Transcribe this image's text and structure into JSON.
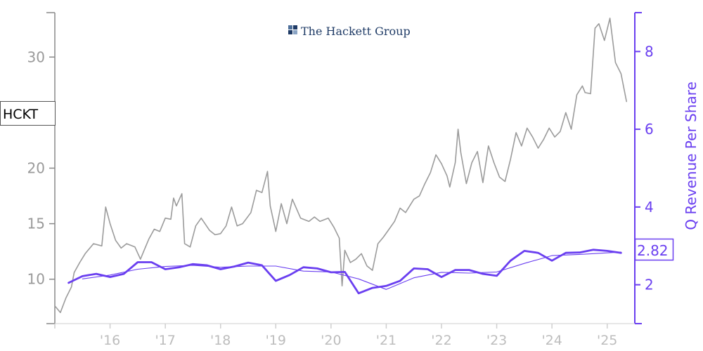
{
  "chart_data": {
    "type": "line",
    "company": "The Hackett Group",
    "ticker": "HCKT",
    "ylabel_right": "Q Revenue Per Share",
    "last_value_label": "2.82",
    "xlim": [
      2015.0,
      2025.5
    ],
    "ylim_left": [
      6.0,
      34.0
    ],
    "ylim_right": [
      1.0,
      9.0
    ],
    "x_ticks": [
      {
        "x": 2016,
        "label": "'16"
      },
      {
        "x": 2017,
        "label": "'17"
      },
      {
        "x": 2018,
        "label": "'18"
      },
      {
        "x": 2019,
        "label": "'19"
      },
      {
        "x": 2020,
        "label": "'20"
      },
      {
        "x": 2021,
        "label": "'21"
      },
      {
        "x": 2022,
        "label": "'22"
      },
      {
        "x": 2023,
        "label": "'23"
      },
      {
        "x": 2024,
        "label": "'24"
      },
      {
        "x": 2025,
        "label": "'25"
      }
    ],
    "y_ticks_left": [
      10,
      15,
      20,
      30
    ],
    "y_ticks_right": [
      2,
      4,
      6,
      8
    ],
    "colors": {
      "price": "#9b9b9b",
      "revenue": "#6a3ff0",
      "axis_left": "#888888",
      "axis_right": "#6a3ff0"
    },
    "series": [
      {
        "axis": "left",
        "points": [
          [
            2015.0,
            7.6
          ],
          [
            2015.1,
            7.0
          ],
          [
            2015.2,
            8.3
          ],
          [
            2015.3,
            9.3
          ],
          [
            2015.35,
            10.6
          ],
          [
            2015.45,
            11.5
          ],
          [
            2015.55,
            12.3
          ],
          [
            2015.7,
            13.2
          ],
          [
            2015.85,
            13.0
          ],
          [
            2015.92,
            16.5
          ],
          [
            2016.0,
            15.0
          ],
          [
            2016.1,
            13.5
          ],
          [
            2016.2,
            12.8
          ],
          [
            2016.3,
            13.2
          ],
          [
            2016.45,
            12.9
          ],
          [
            2016.55,
            11.8
          ],
          [
            2016.6,
            12.4
          ],
          [
            2016.7,
            13.6
          ],
          [
            2016.8,
            14.5
          ],
          [
            2016.9,
            14.3
          ],
          [
            2017.0,
            15.5
          ],
          [
            2017.1,
            15.4
          ],
          [
            2017.15,
            17.3
          ],
          [
            2017.2,
            16.6
          ],
          [
            2017.3,
            17.7
          ],
          [
            2017.35,
            13.2
          ],
          [
            2017.45,
            12.9
          ],
          [
            2017.55,
            14.8
          ],
          [
            2017.65,
            15.5
          ],
          [
            2017.8,
            14.4
          ],
          [
            2017.9,
            14.0
          ],
          [
            2018.0,
            14.1
          ],
          [
            2018.1,
            14.8
          ],
          [
            2018.2,
            16.5
          ],
          [
            2018.3,
            14.8
          ],
          [
            2018.4,
            15.0
          ],
          [
            2018.55,
            16.0
          ],
          [
            2018.65,
            18.0
          ],
          [
            2018.75,
            17.8
          ],
          [
            2018.85,
            19.7
          ],
          [
            2018.9,
            16.6
          ],
          [
            2019.0,
            14.3
          ],
          [
            2019.1,
            16.8
          ],
          [
            2019.2,
            15.0
          ],
          [
            2019.3,
            17.2
          ],
          [
            2019.45,
            15.5
          ],
          [
            2019.6,
            15.2
          ],
          [
            2019.7,
            15.6
          ],
          [
            2019.8,
            15.2
          ],
          [
            2019.95,
            15.5
          ],
          [
            2020.05,
            14.7
          ],
          [
            2020.15,
            13.7
          ],
          [
            2020.2,
            9.4
          ],
          [
            2020.25,
            12.6
          ],
          [
            2020.35,
            11.5
          ],
          [
            2020.45,
            11.8
          ],
          [
            2020.55,
            12.3
          ],
          [
            2020.65,
            11.2
          ],
          [
            2020.75,
            10.8
          ],
          [
            2020.85,
            13.2
          ],
          [
            2020.95,
            13.8
          ],
          [
            2021.05,
            14.5
          ],
          [
            2021.15,
            15.2
          ],
          [
            2021.25,
            16.4
          ],
          [
            2021.35,
            16.0
          ],
          [
            2021.5,
            17.2
          ],
          [
            2021.6,
            17.5
          ],
          [
            2021.7,
            18.6
          ],
          [
            2021.8,
            19.6
          ],
          [
            2021.9,
            21.2
          ],
          [
            2022.0,
            20.4
          ],
          [
            2022.1,
            19.3
          ],
          [
            2022.15,
            18.3
          ],
          [
            2022.25,
            20.5
          ],
          [
            2022.3,
            23.5
          ],
          [
            2022.35,
            21.4
          ],
          [
            2022.45,
            18.6
          ],
          [
            2022.55,
            20.5
          ],
          [
            2022.65,
            21.5
          ],
          [
            2022.75,
            18.7
          ],
          [
            2022.85,
            22.0
          ],
          [
            2022.95,
            20.5
          ],
          [
            2023.05,
            19.2
          ],
          [
            2023.15,
            18.8
          ],
          [
            2023.25,
            20.8
          ],
          [
            2023.35,
            23.2
          ],
          [
            2023.45,
            22.0
          ],
          [
            2023.55,
            23.6
          ],
          [
            2023.65,
            22.8
          ],
          [
            2023.75,
            21.8
          ],
          [
            2023.85,
            22.6
          ],
          [
            2023.95,
            23.6
          ],
          [
            2024.05,
            22.8
          ],
          [
            2024.15,
            23.3
          ],
          [
            2024.25,
            25.0
          ],
          [
            2024.35,
            23.5
          ],
          [
            2024.45,
            26.6
          ],
          [
            2024.55,
            27.4
          ],
          [
            2024.6,
            26.8
          ],
          [
            2024.7,
            26.7
          ],
          [
            2024.78,
            32.6
          ],
          [
            2024.85,
            33.0
          ],
          [
            2024.95,
            31.5
          ],
          [
            2025.05,
            33.5
          ],
          [
            2025.15,
            29.5
          ],
          [
            2025.25,
            28.5
          ],
          [
            2025.35,
            26.0
          ]
        ]
      },
      {
        "axis": "right",
        "points": [
          [
            2015.25,
            2.05
          ],
          [
            2015.5,
            2.22
          ],
          [
            2015.75,
            2.28
          ],
          [
            2016.0,
            2.2
          ],
          [
            2016.25,
            2.28
          ],
          [
            2016.5,
            2.58
          ],
          [
            2016.75,
            2.58
          ],
          [
            2017.0,
            2.4
          ],
          [
            2017.25,
            2.45
          ],
          [
            2017.5,
            2.53
          ],
          [
            2017.75,
            2.5
          ],
          [
            2018.0,
            2.4
          ],
          [
            2018.25,
            2.47
          ],
          [
            2018.5,
            2.57
          ],
          [
            2018.75,
            2.5
          ],
          [
            2019.0,
            2.1
          ],
          [
            2019.25,
            2.25
          ],
          [
            2019.5,
            2.45
          ],
          [
            2019.75,
            2.42
          ],
          [
            2020.0,
            2.32
          ],
          [
            2020.25,
            2.33
          ],
          [
            2020.5,
            1.78
          ],
          [
            2020.75,
            1.92
          ],
          [
            2021.0,
            1.97
          ],
          [
            2021.25,
            2.1
          ],
          [
            2021.5,
            2.42
          ],
          [
            2021.75,
            2.4
          ],
          [
            2022.0,
            2.2
          ],
          [
            2022.25,
            2.38
          ],
          [
            2022.5,
            2.38
          ],
          [
            2022.75,
            2.28
          ],
          [
            2023.0,
            2.23
          ],
          [
            2023.25,
            2.62
          ],
          [
            2023.5,
            2.87
          ],
          [
            2023.75,
            2.82
          ],
          [
            2024.0,
            2.62
          ],
          [
            2024.25,
            2.82
          ],
          [
            2024.5,
            2.83
          ],
          [
            2024.75,
            2.9
          ],
          [
            2025.0,
            2.87
          ],
          [
            2025.25,
            2.82
          ]
        ]
      },
      {
        "axis": "right",
        "points": [
          [
            2015.5,
            2.15
          ],
          [
            2016.0,
            2.25
          ],
          [
            2016.5,
            2.4
          ],
          [
            2017.0,
            2.47
          ],
          [
            2017.5,
            2.5
          ],
          [
            2018.0,
            2.45
          ],
          [
            2018.5,
            2.48
          ],
          [
            2019.0,
            2.48
          ],
          [
            2019.5,
            2.35
          ],
          [
            2020.0,
            2.33
          ],
          [
            2020.5,
            2.15
          ],
          [
            2021.0,
            1.88
          ],
          [
            2021.5,
            2.18
          ],
          [
            2022.0,
            2.32
          ],
          [
            2022.5,
            2.3
          ],
          [
            2023.0,
            2.33
          ],
          [
            2023.5,
            2.55
          ],
          [
            2024.0,
            2.75
          ],
          [
            2024.5,
            2.78
          ],
          [
            2025.0,
            2.82
          ],
          [
            2025.25,
            2.84
          ]
        ]
      }
    ]
  }
}
